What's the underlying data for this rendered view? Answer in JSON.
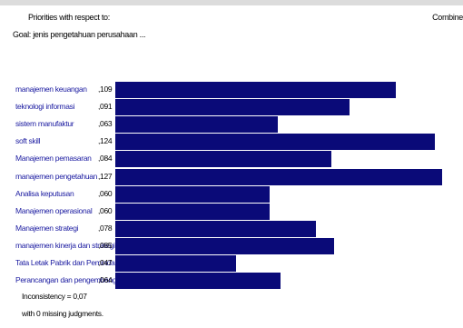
{
  "header": {
    "title": "Priorities with respect to:",
    "goal": "Goal: jenis pengetahuan perusahaan ...",
    "mode": "Combine"
  },
  "chart_data": {
    "type": "bar",
    "orientation": "horizontal",
    "categories": [
      "manajemen keuangan",
      "teknologi informasi",
      "sistem manufaktur",
      "soft skill",
      "Manajemen pemasaran",
      "manajemen pengetahuan",
      "Analisa keputusan",
      "Manajemen operasional",
      "Manajemen strategi",
      "manajemen kinerja dan strategi",
      "Tata Letak Pabrik dan Pemindah",
      "Perancangan dan pengembangan p"
    ],
    "value_labels": [
      ",109",
      ",091",
      ",063",
      ",124",
      ",084",
      ",127",
      ",060",
      ",060",
      ",078",
      ",085",
      ",047",
      ",064"
    ],
    "values": [
      0.109,
      0.091,
      0.063,
      0.124,
      0.084,
      0.127,
      0.06,
      0.06,
      0.078,
      0.085,
      0.047,
      0.064
    ],
    "xlim": [
      0,
      0.135
    ],
    "bar_color": "#0a0a78",
    "label_color": "#1a1aa0"
  },
  "footer": {
    "inconsistency": "Inconsistency = 0,07",
    "missing": "with 0  missing judgments."
  }
}
